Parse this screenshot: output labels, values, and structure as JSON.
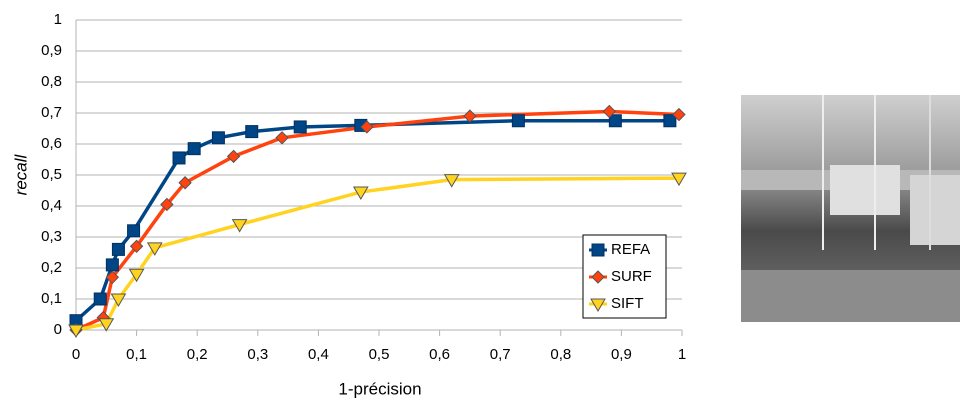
{
  "chart_data": {
    "type": "line",
    "x_label": "1-précision",
    "y_label": "recall",
    "xlim": [
      0,
      1
    ],
    "ylim": [
      0,
      1
    ],
    "grid": true,
    "legend": "lower right",
    "xticks": [
      0,
      {
        "value": 0.1,
        "label": "0,1"
      },
      {
        "value": 0.2,
        "label": "0,2"
      },
      {
        "value": 0.3,
        "label": "0,3"
      },
      {
        "value": 0.4,
        "label": "0,4"
      },
      {
        "value": 0.5,
        "label": "0,5"
      },
      {
        "value": 0.6,
        "label": "0,6"
      },
      {
        "value": 0.7,
        "label": "0,7"
      },
      {
        "value": 0.8,
        "label": "0,8"
      },
      {
        "value": 0.9,
        "label": "0,9"
      },
      1
    ],
    "yticks": [
      0,
      {
        "value": 0.1,
        "label": "0,1"
      },
      {
        "value": 0.2,
        "label": "0,2"
      },
      {
        "value": 0.3,
        "label": "0,3"
      },
      {
        "value": 0.4,
        "label": "0,4"
      },
      {
        "value": 0.5,
        "label": "0,5"
      },
      {
        "value": 0.6,
        "label": "0,6"
      },
      {
        "value": 0.7,
        "label": "0,7"
      },
      {
        "value": 0.8,
        "label": "0,8"
      },
      {
        "value": 0.9,
        "label": "0,9"
      },
      1
    ],
    "series": [
      {
        "name": "REFA",
        "color": "#004586",
        "marker": "square",
        "x": [
          0,
          0.04,
          0.06,
          0.07,
          0.095,
          0.17,
          0.195,
          0.235,
          0.29,
          0.37,
          0.47,
          0.73,
          0.89,
          0.98
        ],
        "values": [
          0.03,
          0.1,
          0.21,
          0.26,
          0.32,
          0.555,
          0.585,
          0.62,
          0.64,
          0.655,
          0.66,
          0.675,
          0.675,
          0.675
        ]
      },
      {
        "name": "SURF",
        "color": "#ff420e",
        "marker": "diamond",
        "x": [
          0,
          0.045,
          0.06,
          0.1,
          0.15,
          0.18,
          0.26,
          0.34,
          0.48,
          0.65,
          0.88,
          0.995
        ],
        "values": [
          0,
          0.04,
          0.17,
          0.27,
          0.405,
          0.475,
          0.56,
          0.62,
          0.655,
          0.69,
          0.705,
          0.695
        ]
      },
      {
        "name": "SIFT",
        "color": "#ffd320",
        "marker": "triangle",
        "x": [
          0,
          0.05,
          0.07,
          0.1,
          0.13,
          0.27,
          0.47,
          0.62,
          0.995
        ],
        "values": [
          0,
          0.02,
          0.1,
          0.18,
          0.265,
          0.34,
          0.445,
          0.485,
          0.49
        ]
      }
    ]
  }
}
